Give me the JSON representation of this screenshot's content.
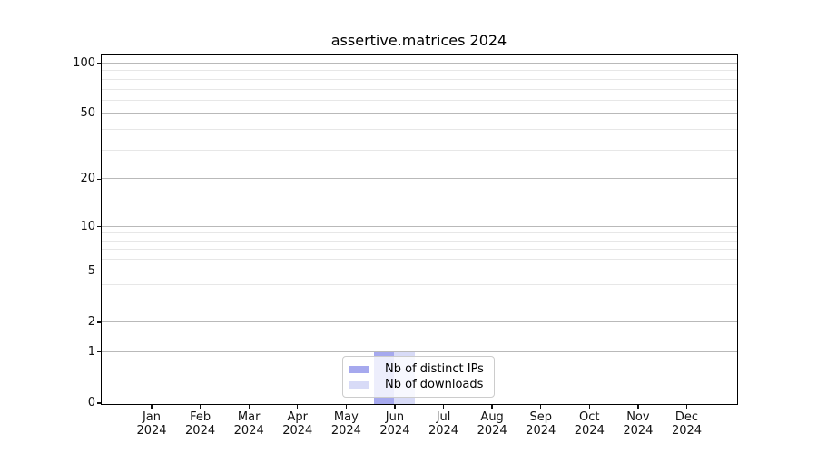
{
  "figure": {
    "background_color": "#ffffff"
  },
  "chart_data": {
    "type": "bar",
    "title": "assertive.matrices 2024",
    "categories": [
      "Jan",
      "Feb",
      "Mar",
      "Apr",
      "May",
      "Jun",
      "Jul",
      "Aug",
      "Sep",
      "Oct",
      "Nov",
      "Dec"
    ],
    "category_year": "2024",
    "series": [
      {
        "name": "Nb of distinct IPs",
        "color": "#a6a9ee",
        "values": [
          0,
          0,
          0,
          0,
          0,
          1,
          0,
          0,
          0,
          0,
          0,
          0
        ]
      },
      {
        "name": "Nb of downloads",
        "color": "#d8dbf7",
        "values": [
          0,
          0,
          0,
          0,
          0,
          1,
          0,
          0,
          0,
          0,
          0,
          0
        ]
      }
    ],
    "xlabel": "",
    "ylabel": "",
    "y_axis": {
      "scale": "log1p",
      "major_ticks": [
        0,
        1,
        2,
        5,
        10,
        20,
        50,
        100
      ],
      "minor_ticks": [
        3,
        4,
        6,
        7,
        8,
        9,
        30,
        40,
        60,
        70,
        80,
        90
      ],
      "range": [
        0,
        112
      ]
    },
    "grid": {
      "orientation": "horizontal",
      "major_color": "#b9b9b9",
      "minor_color": "#e7e7e7"
    },
    "legend": {
      "position": "lower center"
    }
  }
}
